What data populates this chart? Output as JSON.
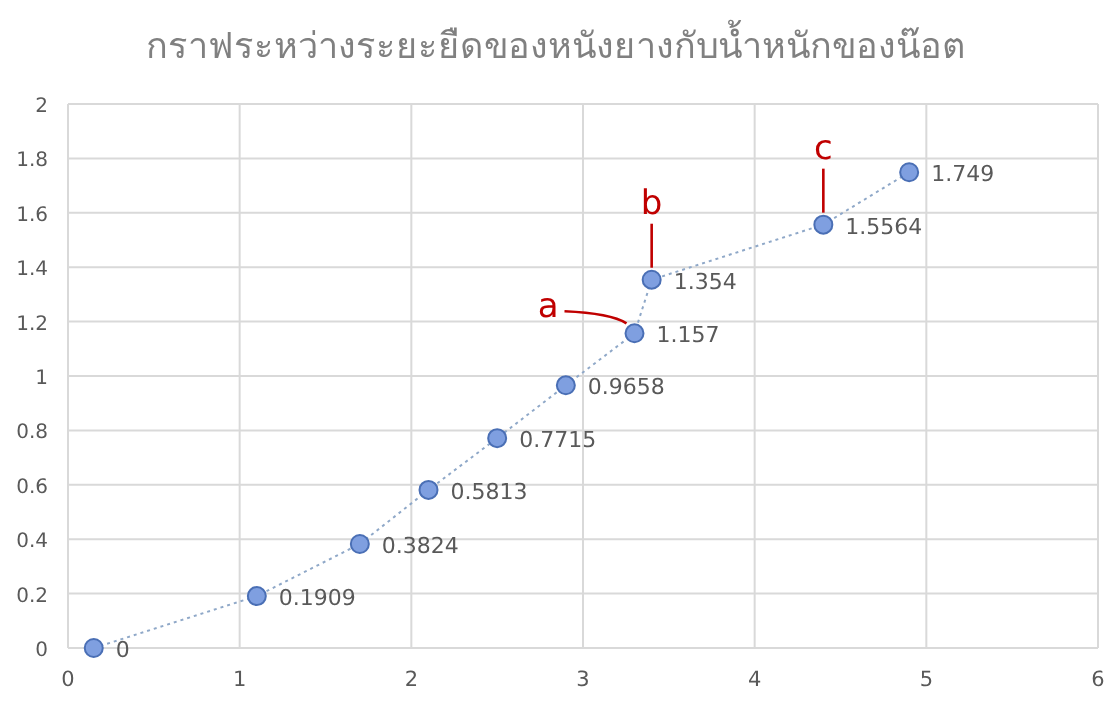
{
  "chart_data": {
    "type": "line",
    "title": "กราฟระหว่างระยะยืดของหนังยางกับน้ำหนักของน๊อต",
    "x": [
      0.15,
      1.1,
      1.7,
      2.1,
      2.5,
      2.9,
      3.3,
      3.4,
      4.4,
      4.9
    ],
    "series": [
      {
        "color": "#7f9fe0",
        "values": [
          0,
          0.1909,
          0.3824,
          0.5813,
          0.7715,
          0.9658,
          1.157,
          1.354,
          1.5564,
          1.749
        ]
      }
    ],
    "data_labels": true,
    "line_style": "dotted",
    "marker": "circle",
    "grid": true,
    "xlim": [
      0,
      6
    ],
    "ylim": [
      0,
      2
    ],
    "xticks": [
      0,
      1,
      2,
      3,
      4,
      5,
      6
    ],
    "yticks": [
      0,
      {
        "value": 0.2,
        "label": "0.2"
      },
      {
        "value": 0.4,
        "label": "0.4"
      },
      {
        "value": 0.6,
        "label": "0.6"
      },
      {
        "value": 0.8,
        "label": "0.8"
      },
      1,
      {
        "value": 1.2,
        "label": "1.2"
      },
      {
        "value": 1.4,
        "label": "1.4"
      },
      {
        "value": 1.6,
        "label": "1.6"
      },
      {
        "value": 1.8,
        "label": "1.8"
      },
      2
    ],
    "annotations": [
      {
        "text": "a",
        "x": 3.3,
        "y": 1.157
      },
      {
        "text": "b",
        "x": 3.4,
        "y": 1.354
      },
      {
        "text": "c",
        "x": 4.4,
        "y": 1.5564
      }
    ]
  }
}
